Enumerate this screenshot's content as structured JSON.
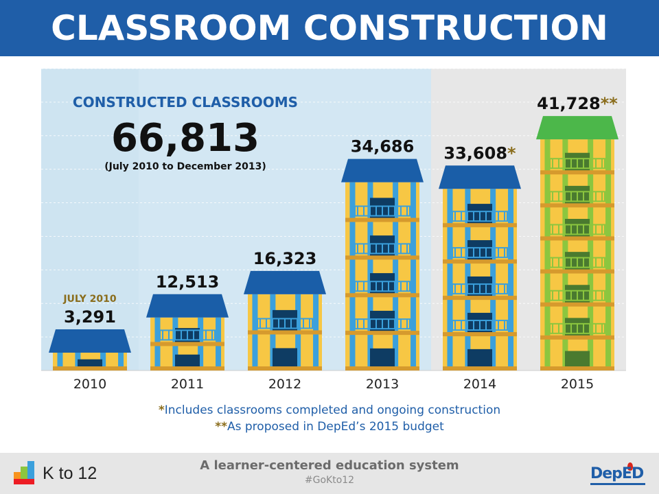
{
  "title": "CLASSROOM CONSTRUCTION",
  "summary": {
    "heading": "CONSTRUCTED CLASSROOMS",
    "total": "66,813",
    "period": "(July 2010 to December 2013)"
  },
  "chart_data": {
    "type": "bar",
    "categories": [
      "2010",
      "2011",
      "2012",
      "2013",
      "2014",
      "2015"
    ],
    "values": [
      3291,
      12513,
      16323,
      34686,
      33608,
      41728
    ],
    "value_labels": [
      "3,291",
      "12,513",
      "16,323",
      "34,686",
      "33,608",
      "41,728"
    ],
    "value_marks": [
      "",
      "",
      "",
      "",
      "*",
      "**"
    ],
    "top_notes": [
      "JULY 2010",
      "",
      "",
      "",
      "",
      ""
    ],
    "floors": [
      0,
      1,
      1,
      4,
      4,
      6
    ],
    "ylim": [
      0,
      45000
    ],
    "colors": {
      "roof_blue": "#1a5ea8",
      "roof_green": "#4cb74a",
      "wall_yellow": "#f7c744",
      "stripe_blue": "#3ba0dc",
      "stripe_green": "#8cc63f",
      "window_dark": "#0e3c63",
      "window_green": "#4a7a2f",
      "floor_band": "#d69a2d",
      "bg_light_blue": "#d3e7f3",
      "bg_grey": "#e7e7e7",
      "mark_gold": "#8a6d1c"
    }
  },
  "footnotes": [
    {
      "mark": "*",
      "text": "Includes classrooms completed and ongoing construction"
    },
    {
      "mark": "**",
      "text": "As proposed in DepEd’s 2015 budget"
    }
  ],
  "footer": {
    "tagline": "A learner-centered education system",
    "hashtag": "#GoKto12",
    "brand": "K to 12",
    "agency_logo_text": "DepED"
  }
}
